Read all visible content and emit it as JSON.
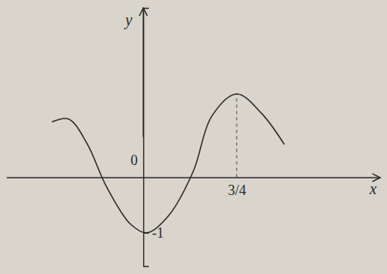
{
  "chart_data": {
    "type": "line",
    "x_label": "x",
    "y_label": "y",
    "x": [
      -0.73,
      -0.6,
      -0.45,
      -0.3,
      -0.1,
      0.03,
      0.2,
      0.4,
      0.55,
      0.75,
      0.95,
      1.13
    ],
    "series": [
      {
        "color": "#2e2e2e",
        "values": [
          1.0,
          1.05,
          0.6,
          -0.15,
          -0.85,
          -1.0,
          -0.7,
          0.1,
          1.1,
          1.5,
          1.15,
          0.6
        ]
      }
    ],
    "xlim": [
      -1.1,
      1.9
    ],
    "ylim": [
      -1.6,
      3.05
    ],
    "xticks": [
      {
        "value": 0,
        "label": "0"
      },
      {
        "value": 0.75,
        "label": "3/4"
      }
    ],
    "yticks": [
      {
        "value": -1,
        "label": "-1"
      }
    ],
    "grid": false
  }
}
